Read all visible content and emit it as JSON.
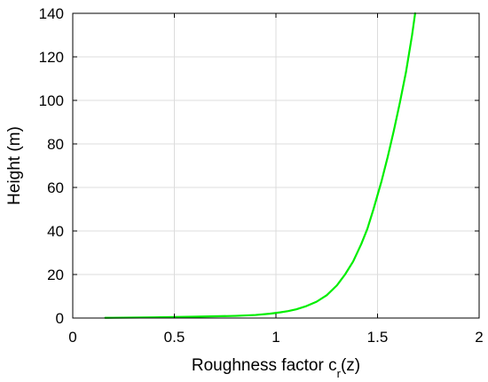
{
  "chart_data": {
    "type": "line",
    "title": "",
    "xlabel": {
      "main": "Roughness factor c",
      "sub": "r",
      "tail": "(z)"
    },
    "ylabel": "Height (m)",
    "xlim": [
      0,
      2
    ],
    "ylim": [
      0,
      140
    ],
    "xticks": [
      0,
      0.5,
      1,
      1.5,
      2
    ],
    "xtick_labels": [
      "0",
      "0.5",
      "1",
      "1.5",
      "2"
    ],
    "yticks": [
      0,
      20,
      40,
      60,
      80,
      100,
      120,
      140
    ],
    "ytick_labels": [
      "0",
      "20",
      "40",
      "60",
      "80",
      "100",
      "120",
      "140"
    ],
    "grid": true,
    "legend": "none",
    "series": [
      {
        "color": "#00ee00",
        "x": [
          0.16,
          0.4,
          0.6,
          0.8,
          0.9,
          0.97,
          1.02,
          1.06,
          1.1,
          1.15,
          1.2,
          1.25,
          1.3,
          1.34,
          1.38,
          1.42,
          1.45,
          1.48,
          1.52,
          1.55,
          1.58,
          1.61,
          1.64,
          1.67,
          1.685
        ],
        "y": [
          0.1,
          0.3,
          0.6,
          1.0,
          1.4,
          2.0,
          2.6,
          3.2,
          4.0,
          5.5,
          7.5,
          10.5,
          15.0,
          20.0,
          26.0,
          34.0,
          41.0,
          50.0,
          63.0,
          74.0,
          86.0,
          99.0,
          113.0,
          130.0,
          140.0
        ]
      }
    ]
  }
}
